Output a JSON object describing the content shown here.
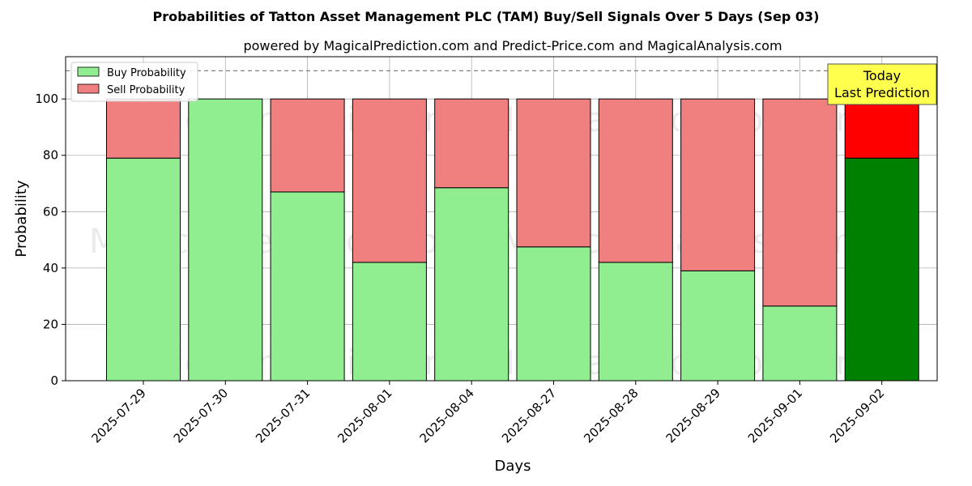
{
  "chart_data": {
    "type": "bar",
    "stacked": true,
    "title": "Probabilities of Tatton Asset Management PLC (TAM) Buy/Sell Signals Over 5 Days (Sep 03)",
    "subtitle": "powered by MagicalPrediction.com and Predict-Price.com and MagicalAnalysis.com",
    "xlabel": "Days",
    "ylabel": "Probability",
    "ylim": [
      0,
      115
    ],
    "yticks": [
      0,
      20,
      40,
      60,
      80,
      100
    ],
    "grid": true,
    "legend_position": "top-left",
    "categories": [
      "2025-07-29",
      "2025-07-30",
      "2025-07-31",
      "2025-08-01",
      "2025-08-04",
      "2025-08-27",
      "2025-08-28",
      "2025-08-29",
      "2025-09-01",
      "2025-09-02"
    ],
    "series": [
      {
        "name": "Buy Probability",
        "color": "#90ee90",
        "highlight_color": "#008000",
        "values": [
          79,
          100,
          67,
          42,
          68.5,
          47.5,
          42,
          39,
          26.5,
          79
        ]
      },
      {
        "name": "Sell Probability",
        "color": "#f08080",
        "highlight_color": "#ff0000",
        "values": [
          21,
          0,
          33,
          58,
          31.5,
          52.5,
          58,
          61,
          73.5,
          21
        ]
      }
    ],
    "highlight_index": 9,
    "reference_line": {
      "y": 110,
      "style": "dashed",
      "color": "#808080"
    },
    "annotation": {
      "lines": [
        "Today",
        "Last Prediction"
      ],
      "background": "#ffff4d"
    },
    "watermarks": [
      "MagicalAnalysis.com",
      "MagicalPrediction.com"
    ]
  }
}
